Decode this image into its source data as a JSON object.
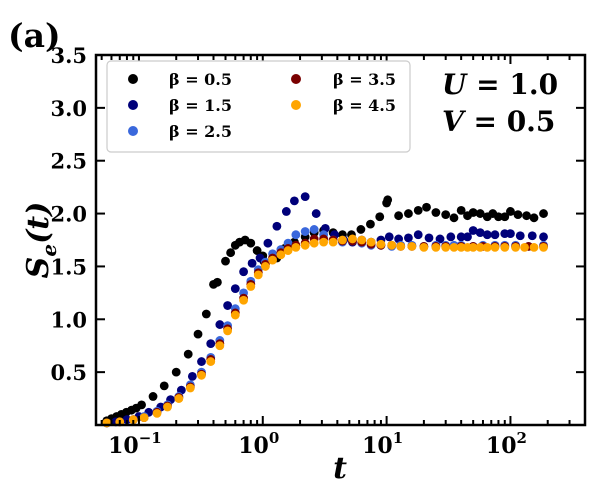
{
  "panel_label": "(a)",
  "chart_data": {
    "type": "scatter",
    "x_scale": "log",
    "xlim": [
      0.045,
      400
    ],
    "ylim": [
      0.0,
      3.5
    ],
    "xlabel_var": "t",
    "ylabel_var": "S",
    "ylabel_sub": "e",
    "ylabel_arg": "(t)",
    "x_ticks": [
      {
        "value": 0.1,
        "base": "10",
        "exp": "−1"
      },
      {
        "value": 1,
        "base": "10",
        "exp": "0"
      },
      {
        "value": 10,
        "base": "10",
        "exp": "1"
      },
      {
        "value": 100,
        "base": "10",
        "exp": "2"
      }
    ],
    "y_ticks": [
      {
        "value": 0.5,
        "label": "0.5"
      },
      {
        "value": 1.0,
        "label": "1.0"
      },
      {
        "value": 1.5,
        "label": "1.5"
      },
      {
        "value": 2.0,
        "label": "2.0"
      },
      {
        "value": 2.5,
        "label": "2.5"
      },
      {
        "value": 3.0,
        "label": "3.0"
      },
      {
        "value": 3.5,
        "label": "3.5"
      }
    ],
    "annotations": [
      {
        "var": "U",
        "value": "1.0"
      },
      {
        "var": "V",
        "value": "0.5"
      }
    ],
    "legend_location": "upper-left",
    "series": [
      {
        "name": "β = 0.5",
        "beta": "0.5",
        "color": "#000000",
        "points": [
          [
            0.055,
            0.04
          ],
          [
            0.06,
            0.06
          ],
          [
            0.066,
            0.08
          ],
          [
            0.072,
            0.1
          ],
          [
            0.079,
            0.12
          ],
          [
            0.087,
            0.14
          ],
          [
            0.095,
            0.16
          ],
          [
            0.105,
            0.19
          ],
          [
            0.13,
            0.27
          ],
          [
            0.16,
            0.37
          ],
          [
            0.2,
            0.5
          ],
          [
            0.25,
            0.67
          ],
          [
            0.3,
            0.86
          ],
          [
            0.35,
            1.05
          ],
          [
            0.4,
            1.33
          ],
          [
            0.43,
            1.35
          ],
          [
            0.5,
            1.55
          ],
          [
            0.55,
            1.63
          ],
          [
            0.6,
            1.7
          ],
          [
            0.65,
            1.73
          ],
          [
            0.72,
            1.75
          ],
          [
            0.8,
            1.72
          ],
          [
            0.9,
            1.65
          ],
          [
            1.0,
            1.6
          ],
          [
            1.02,
            1.55
          ],
          [
            1.3,
            1.58
          ],
          [
            1.5,
            1.67
          ],
          [
            1.8,
            1.73
          ],
          [
            2.2,
            1.78
          ],
          [
            2.6,
            1.82
          ],
          [
            3.1,
            1.84
          ],
          [
            3.7,
            1.82
          ],
          [
            4.4,
            1.8
          ],
          [
            5.2,
            1.8
          ],
          [
            6.2,
            1.85
          ],
          [
            7.4,
            1.9
          ],
          [
            8.8,
            1.97
          ],
          [
            10.0,
            2.1
          ],
          [
            10.2,
            2.13
          ],
          [
            12.5,
            1.98
          ],
          [
            15,
            2.0
          ],
          [
            18,
            2.03
          ],
          [
            21,
            2.06
          ],
          [
            25,
            2.01
          ],
          [
            30,
            1.99
          ],
          [
            35,
            1.96
          ],
          [
            40,
            2.03
          ],
          [
            45,
            1.98
          ],
          [
            50,
            2.01
          ],
          [
            57,
            2.0
          ],
          [
            65,
            1.97
          ],
          [
            72,
            2.0
          ],
          [
            80,
            1.97
          ],
          [
            90,
            1.97
          ],
          [
            100,
            2.02
          ],
          [
            115,
            1.99
          ],
          [
            135,
            1.98
          ],
          [
            155,
            1.96
          ],
          [
            185,
            2.0
          ]
        ]
      },
      {
        "name": "β = 1.5",
        "beta": "1.5",
        "color": "#00007a",
        "points": [
          [
            0.055,
            0.02
          ],
          [
            0.065,
            0.03
          ],
          [
            0.08,
            0.05
          ],
          [
            0.1,
            0.08
          ],
          [
            0.12,
            0.12
          ],
          [
            0.15,
            0.17
          ],
          [
            0.18,
            0.24
          ],
          [
            0.22,
            0.33
          ],
          [
            0.27,
            0.46
          ],
          [
            0.32,
            0.6
          ],
          [
            0.38,
            0.77
          ],
          [
            0.45,
            0.95
          ],
          [
            0.52,
            1.13
          ],
          [
            0.6,
            1.29
          ],
          [
            0.7,
            1.45
          ],
          [
            0.82,
            1.53
          ],
          [
            0.95,
            1.58
          ],
          [
            1.1,
            1.72
          ],
          [
            1.3,
            1.88
          ],
          [
            1.55,
            2.02
          ],
          [
            1.8,
            2.12
          ],
          [
            2.2,
            2.16
          ],
          [
            2.7,
            2.0
          ],
          [
            3.2,
            1.86
          ],
          [
            3.8,
            1.8
          ],
          [
            4.5,
            1.75
          ],
          [
            5.3,
            1.73
          ],
          [
            6.3,
            1.75
          ],
          [
            7.5,
            1.73
          ],
          [
            9,
            1.75
          ],
          [
            10.5,
            1.78
          ],
          [
            12.5,
            1.76
          ],
          [
            15,
            1.77
          ],
          [
            18,
            1.8
          ],
          [
            22,
            1.77
          ],
          [
            27,
            1.76
          ],
          [
            33,
            1.78
          ],
          [
            40,
            1.78
          ],
          [
            45,
            1.78
          ],
          [
            50,
            1.84
          ],
          [
            57,
            1.82
          ],
          [
            65,
            1.8
          ],
          [
            75,
            1.8
          ],
          [
            90,
            1.81
          ],
          [
            100,
            1.81
          ],
          [
            120,
            1.79
          ],
          [
            150,
            1.79
          ],
          [
            185,
            1.78
          ]
        ]
      },
      {
        "name": "β = 2.5",
        "beta": "2.5",
        "color": "#3a68dc",
        "points": [
          [
            0.055,
            0.02
          ],
          [
            0.07,
            0.03
          ],
          [
            0.09,
            0.05
          ],
          [
            0.11,
            0.08
          ],
          [
            0.14,
            0.13
          ],
          [
            0.17,
            0.19
          ],
          [
            0.21,
            0.27
          ],
          [
            0.26,
            0.38
          ],
          [
            0.32,
            0.5
          ],
          [
            0.38,
            0.64
          ],
          [
            0.45,
            0.8
          ],
          [
            0.52,
            0.94
          ],
          [
            0.6,
            1.1
          ],
          [
            0.7,
            1.25
          ],
          [
            0.8,
            1.36
          ],
          [
            0.92,
            1.47
          ],
          [
            1.05,
            1.54
          ],
          [
            1.2,
            1.62
          ],
          [
            1.4,
            1.66
          ],
          [
            1.6,
            1.72
          ],
          [
            1.85,
            1.8
          ],
          [
            2.2,
            1.83
          ],
          [
            2.6,
            1.85
          ],
          [
            3.1,
            1.8
          ],
          [
            3.7,
            1.75
          ],
          [
            4.4,
            1.73
          ],
          [
            5.3,
            1.74
          ],
          [
            6.3,
            1.72
          ],
          [
            7.5,
            1.7
          ],
          [
            9,
            1.7
          ],
          [
            11,
            1.69
          ],
          [
            13,
            1.7
          ],
          [
            16,
            1.7
          ],
          [
            20,
            1.69
          ],
          [
            25,
            1.7
          ],
          [
            30,
            1.7
          ],
          [
            35,
            1.7
          ],
          [
            40,
            1.7
          ],
          [
            50,
            1.69
          ],
          [
            60,
            1.7
          ],
          [
            75,
            1.7
          ],
          [
            90,
            1.7
          ],
          [
            110,
            1.7
          ],
          [
            140,
            1.69
          ],
          [
            185,
            1.7
          ]
        ]
      },
      {
        "name": "β = 3.5",
        "beta": "3.5",
        "color": "#7a0000",
        "points": [
          [
            0.055,
            0.02
          ],
          [
            0.07,
            0.03
          ],
          [
            0.09,
            0.05
          ],
          [
            0.11,
            0.07
          ],
          [
            0.14,
            0.12
          ],
          [
            0.17,
            0.18
          ],
          [
            0.21,
            0.26
          ],
          [
            0.26,
            0.36
          ],
          [
            0.32,
            0.48
          ],
          [
            0.38,
            0.62
          ],
          [
            0.45,
            0.77
          ],
          [
            0.52,
            0.91
          ],
          [
            0.6,
            1.06
          ],
          [
            0.7,
            1.2
          ],
          [
            0.8,
            1.33
          ],
          [
            0.92,
            1.44
          ],
          [
            1.05,
            1.52
          ],
          [
            1.2,
            1.58
          ],
          [
            1.4,
            1.63
          ],
          [
            1.6,
            1.67
          ],
          [
            1.85,
            1.7
          ],
          [
            2.2,
            1.72
          ],
          [
            2.6,
            1.76
          ],
          [
            3.1,
            1.76
          ],
          [
            3.7,
            1.75
          ],
          [
            4.4,
            1.74
          ],
          [
            5.3,
            1.74
          ],
          [
            6.3,
            1.73
          ],
          [
            7.5,
            1.71
          ],
          [
            9,
            1.7
          ],
          [
            11,
            1.7
          ],
          [
            13,
            1.69
          ],
          [
            16,
            1.69
          ],
          [
            20,
            1.69
          ],
          [
            25,
            1.69
          ],
          [
            30,
            1.69
          ],
          [
            40,
            1.69
          ],
          [
            50,
            1.69
          ],
          [
            60,
            1.69
          ],
          [
            75,
            1.69
          ],
          [
            90,
            1.69
          ],
          [
            110,
            1.69
          ],
          [
            140,
            1.69
          ],
          [
            185,
            1.69
          ]
        ]
      },
      {
        "name": "β = 4.5",
        "beta": "4.5",
        "color": "#ffa500",
        "points": [
          [
            0.055,
            0.02
          ],
          [
            0.07,
            0.03
          ],
          [
            0.09,
            0.05
          ],
          [
            0.11,
            0.07
          ],
          [
            0.14,
            0.11
          ],
          [
            0.17,
            0.17
          ],
          [
            0.21,
            0.25
          ],
          [
            0.26,
            0.35
          ],
          [
            0.32,
            0.47
          ],
          [
            0.38,
            0.6
          ],
          [
            0.45,
            0.75
          ],
          [
            0.52,
            0.89
          ],
          [
            0.6,
            1.04
          ],
          [
            0.7,
            1.18
          ],
          [
            0.8,
            1.31
          ],
          [
            0.92,
            1.42
          ],
          [
            1.05,
            1.5
          ],
          [
            1.2,
            1.56
          ],
          [
            1.4,
            1.61
          ],
          [
            1.6,
            1.65
          ],
          [
            1.85,
            1.68
          ],
          [
            2.2,
            1.7
          ],
          [
            2.6,
            1.72
          ],
          [
            3.1,
            1.73
          ],
          [
            3.7,
            1.73
          ],
          [
            4.4,
            1.75
          ],
          [
            5.3,
            1.76
          ],
          [
            6.3,
            1.75
          ],
          [
            7.5,
            1.73
          ],
          [
            9,
            1.71
          ],
          [
            11,
            1.7
          ],
          [
            13,
            1.69
          ],
          [
            16,
            1.69
          ],
          [
            20,
            1.68
          ],
          [
            25,
            1.68
          ],
          [
            30,
            1.68
          ],
          [
            35,
            1.68
          ],
          [
            40,
            1.68
          ],
          [
            45,
            1.68
          ],
          [
            50,
            1.68
          ],
          [
            57,
            1.68
          ],
          [
            65,
            1.68
          ],
          [
            75,
            1.68
          ],
          [
            90,
            1.68
          ],
          [
            110,
            1.68
          ],
          [
            130,
            1.68
          ],
          [
            155,
            1.68
          ],
          [
            185,
            1.68
          ]
        ]
      }
    ]
  }
}
